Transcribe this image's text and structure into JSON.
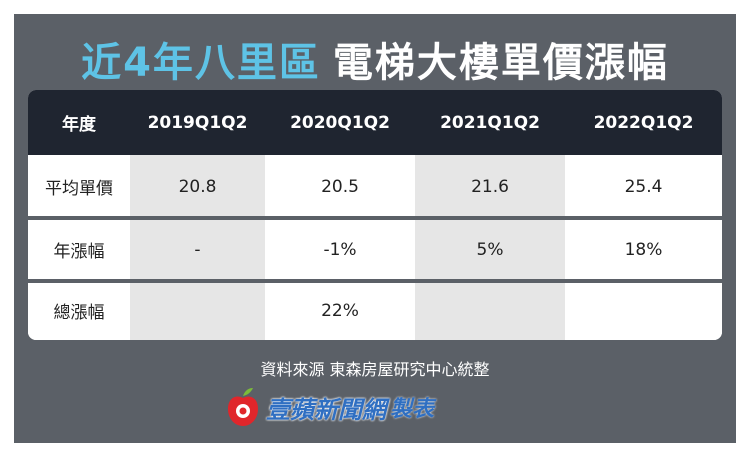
{
  "header": {
    "title_highlight": "近4年八里區",
    "title_rest": "電梯大樓單價漲幅"
  },
  "table": {
    "columns": [
      "年度",
      "2019Q1Q2",
      "2020Q1Q2",
      "2021Q1Q2",
      "2022Q1Q2"
    ],
    "rows": [
      [
        "平均單價",
        "20.8",
        "20.5",
        "21.6",
        "25.4"
      ],
      [
        "年漲幅",
        "-",
        "-1%",
        "5%",
        "18%"
      ],
      [
        "總漲幅",
        null,
        "22%",
        null,
        null
      ]
    ]
  },
  "footer": {
    "source": "資料來源 東森房屋研究中心統整",
    "brand": "壹蘋新聞網",
    "made": "製表"
  }
}
